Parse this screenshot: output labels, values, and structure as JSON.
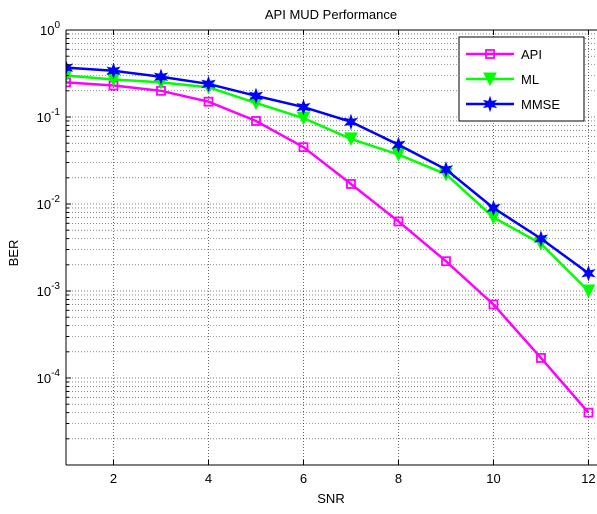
{
  "chart_data": {
    "type": "line",
    "title": "API MUD Performance",
    "xlabel": "SNR",
    "ylabel": "BER",
    "x": [
      1,
      2,
      3,
      4,
      5,
      6,
      7,
      8,
      9,
      10,
      11,
      12
    ],
    "xlim": [
      1,
      12
    ],
    "ylim": [
      1e-05,
      1
    ],
    "y_scale": "log",
    "x_ticks": [
      {
        "value": 2,
        "label": "2"
      },
      {
        "value": 4,
        "label": "4"
      },
      {
        "value": 6,
        "label": "6"
      },
      {
        "value": 8,
        "label": "8"
      },
      {
        "value": 10,
        "label": "10"
      },
      {
        "value": 12,
        "label": "12"
      }
    ],
    "y_ticks": [
      {
        "value": 1,
        "base": "10",
        "exp": "0"
      },
      {
        "value": 0.1,
        "base": "10",
        "exp": "-1"
      },
      {
        "value": 0.01,
        "base": "10",
        "exp": "-2"
      },
      {
        "value": 0.001,
        "base": "10",
        "exp": "-3"
      },
      {
        "value": 0.0001,
        "base": "10",
        "exp": "-4"
      }
    ],
    "grid": true,
    "legend_position": "top-right",
    "series": [
      {
        "name": "API",
        "color": "#ff00ff",
        "marker": "square",
        "values": [
          0.25,
          0.23,
          0.2,
          0.15,
          0.09,
          0.045,
          0.017,
          0.0063,
          0.0022,
          0.0007,
          0.00017,
          4e-05
        ]
      },
      {
        "name": "ML",
        "color": "#00ff00",
        "marker": "triangle-down",
        "values": [
          0.3,
          0.27,
          0.25,
          0.22,
          0.145,
          0.097,
          0.056,
          0.037,
          0.022,
          0.007,
          0.0035,
          0.001
        ]
      },
      {
        "name": "MMSE",
        "color": "#0000ff",
        "marker": "star",
        "values": [
          0.37,
          0.34,
          0.29,
          0.24,
          0.175,
          0.13,
          0.088,
          0.048,
          0.025,
          0.009,
          0.004,
          0.0016
        ]
      }
    ]
  }
}
